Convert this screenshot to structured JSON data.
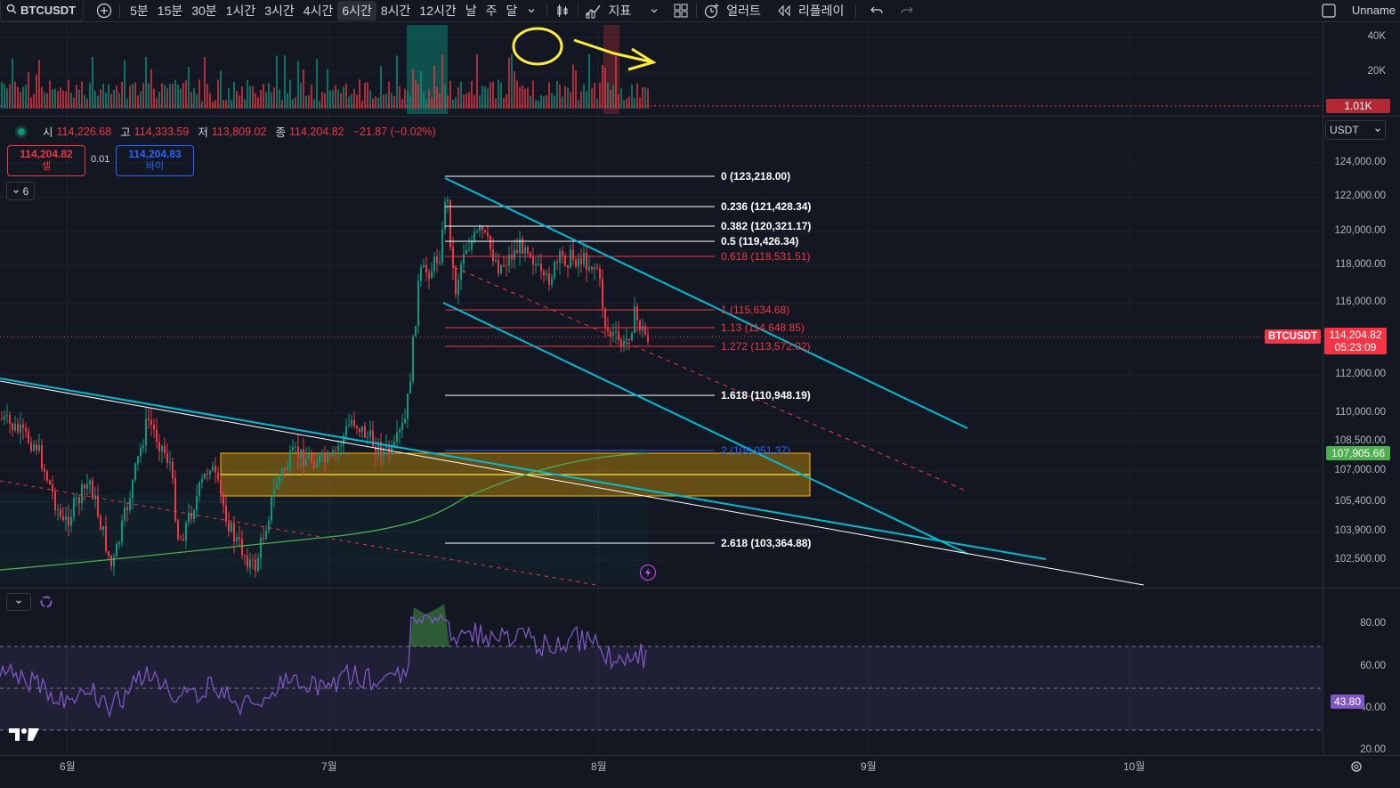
{
  "toolbar": {
    "symbol": "BTCUSDT",
    "intervals": [
      "5분",
      "15분",
      "30분",
      "1시간",
      "3시간",
      "4시간",
      "6시간",
      "8시간",
      "12시간",
      "날",
      "주",
      "달"
    ],
    "active_interval": "6시간",
    "indicators_label": "지표",
    "alerts_label": "얼러트",
    "replay_label": "리플레이",
    "layout_name": "Unname"
  },
  "volume_axis": {
    "labels": [
      "40K",
      "20K"
    ],
    "current": "1.01K"
  },
  "legend": {
    "open_key": "시",
    "open": "114,226.68",
    "high_key": "고",
    "high": "114,333.59",
    "low_key": "저",
    "low": "113,809.02",
    "close_key": "종",
    "close": "114,204.82",
    "change": "−21.87 (−0.02%)"
  },
  "trade": {
    "sell_price": "114,204.82",
    "sell_label": "셀",
    "spread": "0.01",
    "buy_price": "114,204.83",
    "buy_label": "바이"
  },
  "collapse_count": "6",
  "currency": "USDT",
  "price_axis": [
    "124,000.00",
    "122,000.00",
    "120,000.00",
    "118,000.00",
    "116,000.00",
    "112,000.00",
    "110,000.00",
    "108,500.00",
    "107,000.00",
    "105,400.00",
    "103,900.00",
    "102,500.00"
  ],
  "last_price": {
    "symbol_tag": "BTCUSDT",
    "price": "114,204.82",
    "countdown": "05:23:09"
  },
  "ma_price": "107,905.66",
  "fib_levels": [
    {
      "label": "0 (123,218.00)",
      "color": "#ffffff",
      "y": 198
    },
    {
      "label": "0.236 (121,428.34)",
      "color": "#ffffff",
      "y": 232
    },
    {
      "label": "0.382 (120,321.17)",
      "color": "#ffffff",
      "y": 254
    },
    {
      "label": "0.5 (119,426.34)",
      "color": "#ffffff",
      "y": 271
    },
    {
      "label": "0.618 (118,531.51)",
      "color": "#f23645",
      "y": 288
    },
    {
      "label": "1 (115,634.68)",
      "color": "#f23645",
      "y": 348
    },
    {
      "label": "1.13 (114,648.85)",
      "color": "#f23645",
      "y": 368
    },
    {
      "label": "1.272 (113,572.02)",
      "color": "#f23645",
      "y": 389
    },
    {
      "label": "1.618 (110,948.19)",
      "color": "#ffffff",
      "y": 444
    },
    {
      "label": "2 (108,051.37)",
      "color": "#2962ff",
      "y": 506
    },
    {
      "label": "2.618 (103,364.88)",
      "color": "#ffffff",
      "y": 610
    }
  ],
  "rsi_axis": [
    "80.00",
    "60.00",
    "40.00",
    "20.00"
  ],
  "rsi_value": "43.80",
  "months": [
    "6월",
    "7월",
    "8월",
    "9월",
    "10월"
  ],
  "colors": {
    "up": "#089981",
    "down": "#f23645",
    "rsi": "#7e57c2",
    "channel": "#00bcd4",
    "zone": "#ffb300",
    "ma": "#4caf50"
  }
}
